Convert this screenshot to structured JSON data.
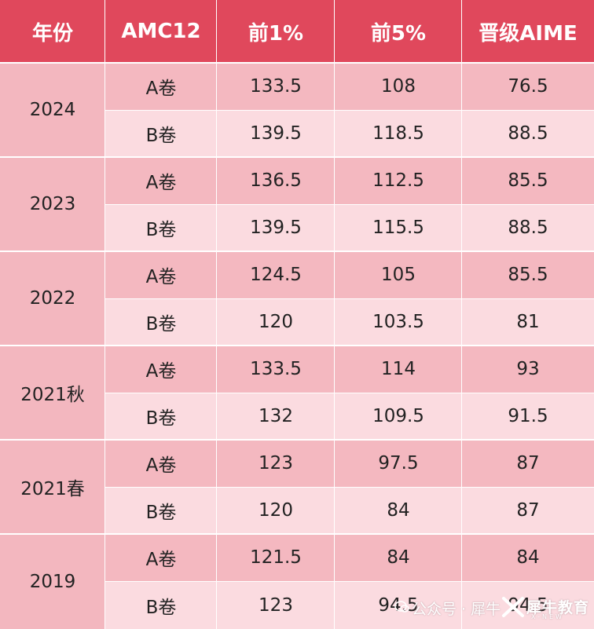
{
  "headers": [
    "年份",
    "AMC12",
    "前1%",
    "前5%",
    "晋级AIME"
  ],
  "groups": [
    {
      "year": "2024",
      "rows": [
        {
          "paper": "A卷",
          "top1": "133.5",
          "top5": "108",
          "aime": "76.5"
        },
        {
          "paper": "B卷",
          "top1": "139.5",
          "top5": "118.5",
          "aime": "88.5"
        }
      ]
    },
    {
      "year": "2023",
      "rows": [
        {
          "paper": "A卷",
          "top1": "136.5",
          "top5": "112.5",
          "aime": "85.5"
        },
        {
          "paper": "B卷",
          "top1": "139.5",
          "top5": "115.5",
          "aime": "88.5"
        }
      ]
    },
    {
      "year": "2022",
      "rows": [
        {
          "paper": "A卷",
          "top1": "124.5",
          "top5": "105",
          "aime": "85.5"
        },
        {
          "paper": "B卷",
          "top1": "120",
          "top5": "103.5",
          "aime": "81"
        }
      ]
    },
    {
      "year": "2021秋",
      "rows": [
        {
          "paper": "A卷",
          "top1": "133.5",
          "top5": "114",
          "aime": "93"
        },
        {
          "paper": "B卷",
          "top1": "132",
          "top5": "109.5",
          "aime": "91.5"
        }
      ]
    },
    {
      "year": "2021春",
      "rows": [
        {
          "paper": "A卷",
          "top1": "123",
          "top5": "97.5",
          "aime": "87"
        },
        {
          "paper": "B卷",
          "top1": "120",
          "top5": "84",
          "aime": "87"
        }
      ]
    },
    {
      "year": "2019",
      "rows": [
        {
          "paper": "A卷",
          "top1": "121.5",
          "top5": "84",
          "aime": "84"
        },
        {
          "paper": "B卷",
          "top1": "123",
          "top5": "94.5",
          "aime": "94.5"
        }
      ]
    }
  ],
  "watermark": {
    "text": "公众号 · 犀牛",
    "brand": "犀牛教育",
    "sub": "X-NEW"
  },
  "colors": {
    "header": "#e0485c",
    "year": "#f3b7bf",
    "rowA": "#f4b8c0",
    "rowB": "#fbdbe0"
  }
}
